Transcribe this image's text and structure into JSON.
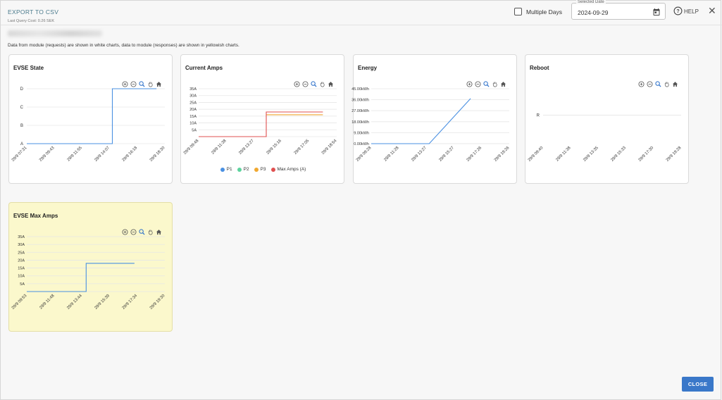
{
  "header": {
    "export_label": "EXPORT TO CSV",
    "query_cost": "Last Query Cost: 0.26 SEK",
    "info_text": "Data from module (requests) are shown in white charts, data to module (responses) are shown in yellowish charts.",
    "multiple_days_label": "Multiple Days",
    "multiple_days_checked": false,
    "date_label": "Selected Date",
    "date_value": "2024-09-29",
    "help_label": "HELP",
    "close_icon": "close-icon"
  },
  "footer": {
    "close_label": "CLOSE"
  },
  "colors": {
    "line_blue": "#4a90e2",
    "p2_green": "#5dd39e",
    "p3_orange": "#f0a830",
    "max_amps_red": "#e05050",
    "yellow_card": "#fbf8cc",
    "button_blue": "#3a78c9"
  },
  "toolbar_icons": [
    "zoom-in-icon",
    "zoom-out-icon",
    "magnifier-icon",
    "pan-hand-icon",
    "home-icon"
  ],
  "chart_data": [
    {
      "id": "evse_state",
      "title": "EVSE State",
      "type": "line",
      "y_type": "category",
      "y_categories": [
        "A",
        "B",
        "C",
        "D"
      ],
      "x_ticks": [
        "29/9 07:31",
        "29/9 09:43",
        "29/9 11:55",
        "29/9 14:07",
        "29/9 16:18",
        "29/9 18:30"
      ],
      "series": [
        {
          "color": "#4a90e2",
          "step": true,
          "points": [
            [
              0,
              "A"
            ],
            [
              3.1,
              "A"
            ],
            [
              3.1,
              "D"
            ],
            [
              4.7,
              "D"
            ]
          ]
        }
      ]
    },
    {
      "id": "current_amps",
      "title": "Current Amps",
      "type": "line",
      "y_ticks": [
        "5A",
        "10A",
        "15A",
        "20A",
        "25A",
        "30A",
        "35A"
      ],
      "ylim": [
        0,
        35
      ],
      "x_ticks": [
        "29/9 09:48",
        "29/9 11:38",
        "29/9 13:27",
        "29/9 15:16",
        "29/9 17:05",
        "29/9 18:54"
      ],
      "series": [
        {
          "name": "P1",
          "color": "#4a90e2",
          "points": []
        },
        {
          "name": "P2",
          "color": "#5dd39e",
          "points": []
        },
        {
          "name": "P3",
          "color": "#f0a830",
          "points": [
            [
              2.45,
              16
            ],
            [
              4.5,
              16
            ]
          ]
        },
        {
          "name": "Max Amps (A)",
          "color": "#e05050",
          "step": true,
          "points": [
            [
              0,
              0
            ],
            [
              2.45,
              0
            ],
            [
              2.45,
              18
            ],
            [
              4.5,
              18
            ]
          ]
        }
      ]
    },
    {
      "id": "energy",
      "title": "Energy",
      "type": "line",
      "y_ticks": [
        "0.00kWh",
        "9.00kWh",
        "18.00kWh",
        "27.00kWh",
        "36.00kWh",
        "45.00kWh"
      ],
      "ylim": [
        0,
        45
      ],
      "x_ticks": [
        "29/9 09:28",
        "29/9 11:28",
        "29/9 13:27",
        "29/9 15:27",
        "29/9 17:26",
        "29/9 19:26"
      ],
      "series": [
        {
          "color": "#4a90e2",
          "points": [
            [
              0,
              0
            ],
            [
              2.1,
              0
            ],
            [
              3.6,
              37
            ]
          ]
        }
      ]
    },
    {
      "id": "reboot",
      "title": "Reboot",
      "type": "line",
      "y_type": "category",
      "y_categories": [
        "R"
      ],
      "x_ticks": [
        "29/9 09:40",
        "29/9 11:38",
        "29/9 13:35",
        "29/9 15:33",
        "29/9 17:30",
        "29/9 19:28"
      ],
      "series": []
    },
    {
      "id": "evse_max_amps",
      "title": "EVSE Max Amps",
      "type": "line",
      "y_ticks": [
        "5A",
        "10A",
        "15A",
        "20A",
        "25A",
        "30A",
        "35A"
      ],
      "ylim": [
        0,
        35
      ],
      "x_ticks": [
        "29/9 09:53",
        "29/9 11:48",
        "29/9 13:44",
        "29/9 15:39",
        "29/9 17:34",
        "29/9 19:30"
      ],
      "series": [
        {
          "color": "#4a90e2",
          "step": true,
          "points": [
            [
              0,
              0
            ],
            [
              2.15,
              0
            ],
            [
              2.15,
              18
            ],
            [
              3.9,
              18
            ]
          ]
        }
      ]
    }
  ]
}
